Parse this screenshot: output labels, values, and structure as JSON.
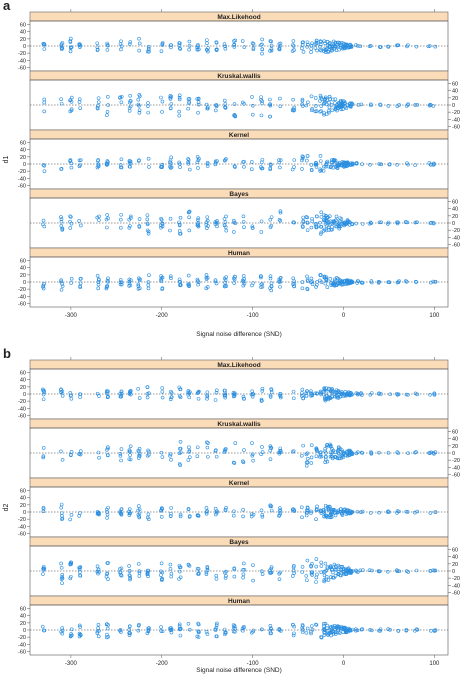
{
  "chart_data": [
    {
      "type": "scatter",
      "label": "a",
      "xlabel": "Signal noise difference (SND)",
      "ylabel": "d1",
      "xlim": [
        -345,
        115
      ],
      "ylim": [
        -70,
        70
      ],
      "xticks": [
        -300,
        -200,
        -100,
        0,
        100
      ],
      "yticks": [
        -60,
        -40,
        -20,
        0,
        20,
        40,
        60
      ],
      "grid": false,
      "panels": [
        {
          "name": "Max.Likehood",
          "y_axis_side": "left"
        },
        {
          "name": "Kruskal.wallis",
          "y_axis_side": "right"
        },
        {
          "name": "Kernel",
          "y_axis_side": "left"
        },
        {
          "name": "Bayes",
          "y_axis_side": "right"
        },
        {
          "name": "Human",
          "y_axis_side": "left"
        }
      ]
    },
    {
      "type": "scatter",
      "label": "b",
      "xlabel": "Signal noise difference (SND)",
      "ylabel": "d2",
      "xlim": [
        -345,
        115
      ],
      "ylim": [
        -70,
        70
      ],
      "xticks": [
        -300,
        -200,
        -100,
        0,
        100
      ],
      "yticks": [
        -60,
        -40,
        -20,
        0,
        20,
        40,
        60
      ],
      "grid": false,
      "panels": [
        {
          "name": "Max.Likehood",
          "y_axis_side": "left"
        },
        {
          "name": "Kruskal.wallis",
          "y_axis_side": "right"
        },
        {
          "name": "Kernel",
          "y_axis_side": "left"
        },
        {
          "name": "Bayes",
          "y_axis_side": "right"
        },
        {
          "name": "Human",
          "y_axis_side": "left"
        }
      ]
    }
  ],
  "style": {
    "point_color": "#2b8fe0",
    "strip_color": "#fbdcb8"
  },
  "data_x_positions": [
    -330,
    -310,
    -300,
    -290,
    -270,
    -260,
    -245,
    -235,
    -225,
    -215,
    -200,
    -190,
    -180,
    -170,
    -160,
    -150,
    -140,
    -130,
    -120,
    -110,
    -100,
    -90,
    -80,
    -70,
    -55,
    -45,
    -40,
    -35,
    -30,
    -25
  ],
  "dense_x_range": [
    -22,
    10
  ],
  "tail_x_positions": [
    15,
    20,
    30,
    40,
    50,
    60,
    70,
    80,
    95,
    100
  ]
}
